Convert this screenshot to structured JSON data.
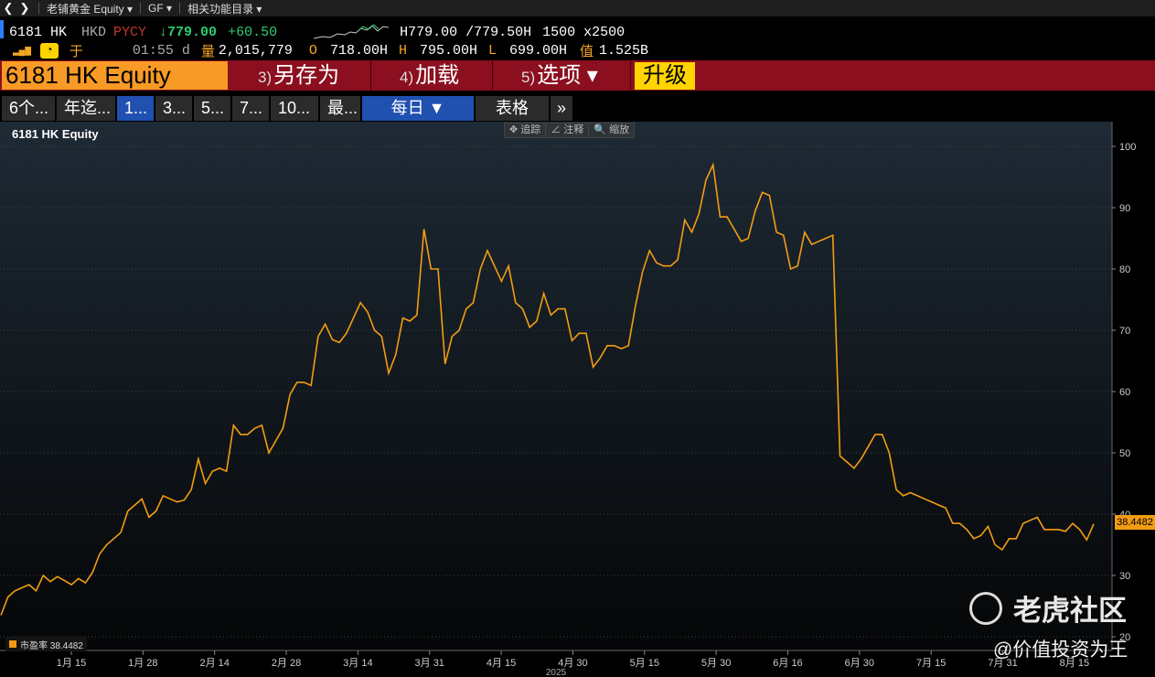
{
  "navbar": {
    "back": "❮",
    "forward": "❯",
    "crumbs": [
      "老铺黄金 Equity ▾",
      "GF ▾",
      "相关功能目录 ▾"
    ]
  },
  "quote": {
    "ticker": "6181 HK",
    "currency": "HKD",
    "pycy": "PYCY",
    "price": "↓779.00",
    "change": "+60.50",
    "hl_range": "H779.00 /779.50H",
    "size": "1500 x2500",
    "bars": "▂▄▆",
    "yu": "于",
    "time": "01:55 d",
    "vol_label": "量",
    "volume": "2,015,779",
    "o_label": "O",
    "open": "718.00H",
    "h_label": "H",
    "high": "795.00H",
    "l_label": "L",
    "low": "699.00H",
    "val_label": "值",
    "value": "1.525B"
  },
  "function_bar": {
    "security": "6181 HK Equity",
    "buttons": [
      {
        "num": "3)",
        "label": "另存为"
      },
      {
        "num": "4)",
        "label": "加载"
      },
      {
        "num": "5)",
        "label": "选项 ▾"
      }
    ],
    "upgrade": "升级"
  },
  "tabs": {
    "ranges": [
      "6个...",
      "年迄...",
      "1...",
      "3...",
      "5...",
      "7...",
      "10...",
      "最..."
    ],
    "frequency": "每日 ▼",
    "table": "表格",
    "more": "»"
  },
  "chart_toolbar": [
    "✥ 追踪",
    "∠ 注释",
    "🔍 缩放"
  ],
  "watermark": {
    "brand": "老虎社区",
    "handle": "@价值投资为王"
  },
  "chart_data": {
    "type": "line",
    "title": "6181 HK Equity",
    "legend": "市盈率 38.4482",
    "last_value": "38.4482",
    "ylim": [
      20,
      100
    ],
    "yticks": [
      20,
      30,
      40,
      50,
      60,
      70,
      80,
      90,
      100
    ],
    "xticks": [
      "1月 15",
      "1月 28",
      "2月 14",
      "2月 28",
      "3月 14",
      "3月 31",
      "4月 15",
      "4月 30",
      "5月 15",
      "5月 30",
      "6月 16",
      "6月 30",
      "7月 15",
      "7月 31",
      "8月 15"
    ],
    "xlabel": "2025",
    "series": [
      {
        "name": "市盈率",
        "values": [
          23.5,
          26.5,
          27.5,
          28,
          28.5,
          27.5,
          30,
          29,
          29.8,
          29.2,
          28.5,
          29.5,
          28.8,
          30.5,
          33.5,
          35,
          36,
          37,
          40.5,
          41.5,
          42.5,
          39.5,
          40.5,
          43,
          42.5,
          42,
          42.3,
          44,
          49,
          45,
          47,
          47.5,
          47,
          54.5,
          53,
          53,
          54,
          54.5,
          50,
          52,
          54,
          59.5,
          61.5,
          61.5,
          61,
          69,
          71,
          68.5,
          68,
          69.5,
          72,
          74.5,
          73,
          70,
          69,
          63,
          66,
          72,
          71.5,
          72.5,
          86.5,
          80,
          80,
          64.5,
          69,
          70,
          73.5,
          74.5,
          80,
          83,
          80.5,
          78,
          80.5,
          74.5,
          73.5,
          70.5,
          71.5,
          76,
          72.5,
          73.5,
          73.5,
          68.3,
          69.5,
          69.5,
          64,
          65.5,
          67.5,
          67.5,
          67,
          67.5,
          74,
          79.5,
          83,
          81,
          80.5,
          80.5,
          81.5,
          88,
          86,
          89,
          94.5,
          97,
          88.5,
          88.5,
          86.5,
          84.5,
          85,
          89.5,
          92.5,
          92,
          86,
          85.5,
          80,
          80.5,
          86,
          84,
          84.5,
          85,
          85.5,
          49.5,
          48.5,
          47.5,
          49,
          51,
          53,
          53,
          50,
          44,
          43,
          43.5,
          43,
          42.5,
          42,
          41.5,
          41,
          38.5,
          38.5,
          37.5,
          36,
          36.5,
          38,
          35,
          34.2,
          36,
          36,
          38.5,
          39,
          39.5,
          37.5,
          37.5,
          37.5,
          37.2,
          38.5,
          37.5,
          35.8,
          38.4
        ]
      }
    ]
  }
}
